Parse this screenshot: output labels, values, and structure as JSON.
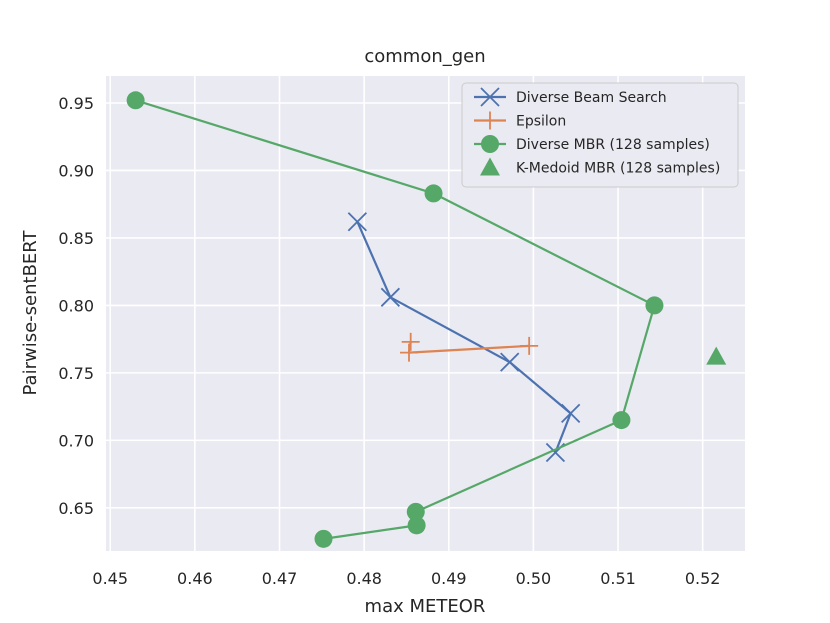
{
  "chart_data": {
    "type": "line",
    "title": "common_gen",
    "xlabel": "max METEOR",
    "ylabel": "Pairwise-sentBERT",
    "xlim": [
      0.4495,
      0.525
    ],
    "ylim": [
      0.618,
      0.97
    ],
    "xticks": [
      0.45,
      0.46,
      0.47,
      0.48,
      0.49,
      0.5,
      0.51,
      0.52
    ],
    "xtick_labels": [
      "0.45",
      "0.46",
      "0.47",
      "0.48",
      "0.49",
      "0.50",
      "0.51",
      "0.52"
    ],
    "yticks": [
      0.65,
      0.7,
      0.75,
      0.8,
      0.85,
      0.9,
      0.95
    ],
    "ytick_labels": [
      "0.65",
      "0.70",
      "0.75",
      "0.80",
      "0.85",
      "0.90",
      "0.95"
    ],
    "grid": true,
    "legend_position": "top-right",
    "series": [
      {
        "name": "Diverse Beam Search",
        "color": "#4c72b0",
        "marker": "x",
        "points": [
          [
            0.4792,
            0.862
          ],
          [
            0.4831,
            0.806
          ],
          [
            0.4972,
            0.758
          ],
          [
            0.5044,
            0.72
          ],
          [
            0.5026,
            0.691
          ]
        ]
      },
      {
        "name": "Epsilon",
        "color": "#dd8452",
        "marker": "plus",
        "points": [
          [
            0.4855,
            0.773
          ],
          [
            0.4853,
            0.765
          ],
          [
            0.4995,
            0.77
          ]
        ]
      },
      {
        "name": "Diverse MBR (128 samples)",
        "color": "#55a868",
        "marker": "circle",
        "points": [
          [
            0.453,
            0.952
          ],
          [
            0.4882,
            0.883
          ],
          [
            0.5143,
            0.8
          ],
          [
            0.5104,
            0.715
          ],
          [
            0.4861,
            0.647
          ],
          [
            0.4862,
            0.637
          ],
          [
            0.4752,
            0.627
          ]
        ]
      },
      {
        "name": "K-Medoid MBR (128 samples)",
        "color": "#55a868",
        "marker": "triangle",
        "points": [
          [
            0.5216,
            0.762
          ]
        ]
      }
    ]
  }
}
